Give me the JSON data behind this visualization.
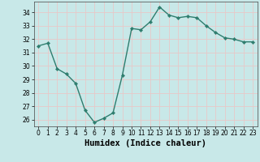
{
  "xlabel": "Humidex (Indice chaleur)",
  "ylabel": "",
  "x": [
    0,
    1,
    2,
    3,
    4,
    5,
    6,
    7,
    8,
    9,
    10,
    11,
    12,
    13,
    14,
    15,
    16,
    17,
    18,
    19,
    20,
    21,
    22,
    23
  ],
  "y": [
    31.5,
    31.7,
    29.8,
    29.4,
    28.7,
    26.7,
    25.8,
    26.1,
    26.5,
    29.3,
    32.8,
    32.7,
    33.3,
    34.4,
    33.8,
    33.6,
    33.7,
    33.6,
    33.0,
    32.5,
    32.1,
    32.0,
    31.8,
    31.8
  ],
  "line_color": "#2e7d6e",
  "marker": "D",
  "marker_size": 2.2,
  "background_color": "#c8e8e8",
  "grid_color": "#e8c8c8",
  "ylim": [
    25.5,
    34.8
  ],
  "yticks": [
    26,
    27,
    28,
    29,
    30,
    31,
    32,
    33,
    34
  ],
  "xticks": [
    0,
    1,
    2,
    3,
    4,
    5,
    6,
    7,
    8,
    9,
    10,
    11,
    12,
    13,
    14,
    15,
    16,
    17,
    18,
    19,
    20,
    21,
    22,
    23
  ],
  "tick_fontsize": 5.5,
  "xlabel_fontsize": 7.5,
  "line_width": 1.0
}
